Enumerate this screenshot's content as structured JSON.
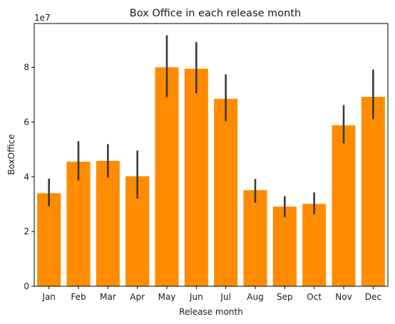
{
  "chart_data": {
    "type": "bar",
    "title": "Box Office in each release month",
    "xlabel": "Release month",
    "ylabel": "BoxOffice",
    "y_scale_label": "1e7",
    "ylim": [
      0,
      96000000
    ],
    "y_ticks": [
      0,
      20000000,
      40000000,
      60000000,
      80000000
    ],
    "y_tick_labels": [
      "0",
      "2",
      "4",
      "6",
      "8"
    ],
    "categories": [
      "Jan",
      "Feb",
      "Mar",
      "Apr",
      "May",
      "Jun",
      "Jul",
      "Aug",
      "Sep",
      "Oct",
      "Nov",
      "Dec"
    ],
    "values": [
      34000000,
      45500000,
      45800000,
      40200000,
      80000000,
      79500000,
      68500000,
      35100000,
      29100000,
      30100000,
      58800000,
      69200000
    ],
    "error_low": [
      29200000,
      38700000,
      39700000,
      32000000,
      69000000,
      70500000,
      60300000,
      30500000,
      25300000,
      26300000,
      52200000,
      61000000
    ],
    "error_high": [
      39300000,
      53000000,
      51900000,
      49600000,
      91700000,
      89200000,
      77400000,
      39200000,
      32900000,
      34300000,
      66200000,
      79200000
    ],
    "bar_color": "#ff8c00",
    "error_color": "#3a3a3a",
    "grid": false,
    "legend": "none"
  }
}
